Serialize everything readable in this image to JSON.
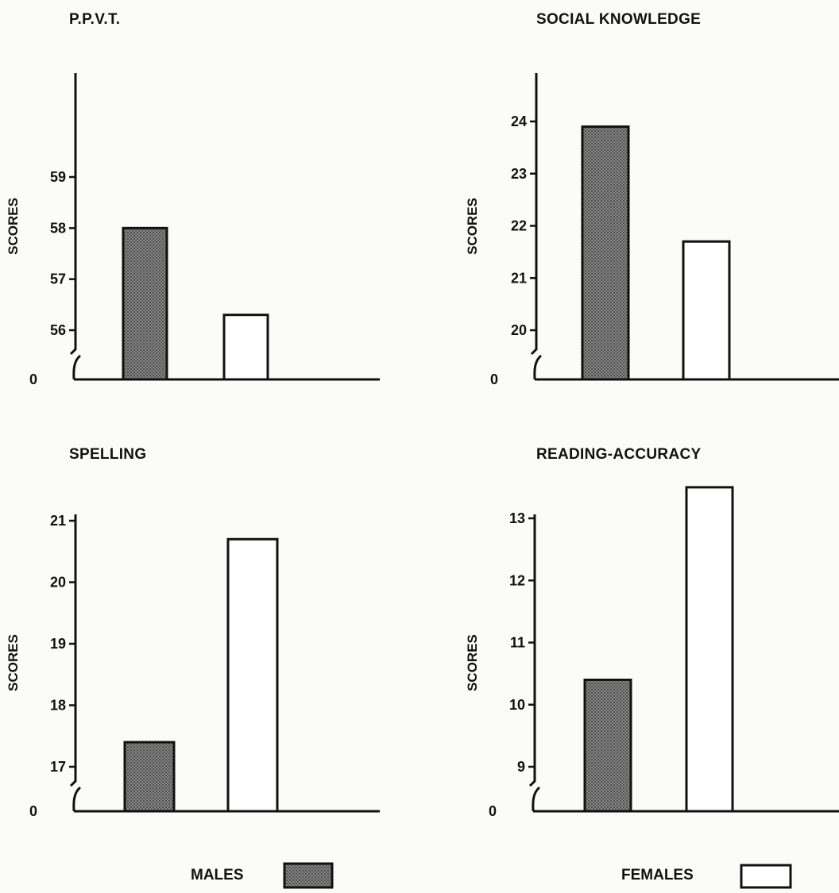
{
  "legend": {
    "males": "MALES",
    "females": "FEMALES"
  },
  "colors": {
    "ink": "#111111",
    "background": "#fbfbf9",
    "female_fill": "#ffffff",
    "male_fill": "hatched-gray"
  },
  "chart_data": [
    {
      "type": "bar",
      "title": "P.P.V.T.",
      "ylabel": "SCORES",
      "categories": [
        "MALES",
        "FEMALES"
      ],
      "values": [
        58.0,
        56.3
      ],
      "yticks": [
        56,
        57,
        58,
        59
      ],
      "ytick_labels": [
        "56",
        "57",
        "58",
        "59"
      ],
      "ylim": [
        55.3,
        60.6
      ],
      "broken_axis_zero_label": "0"
    },
    {
      "type": "bar",
      "title": "SOCIAL KNOWLEDGE",
      "ylabel": "SCORES",
      "categories": [
        "MALES",
        "FEMALES"
      ],
      "values": [
        23.9,
        21.7
      ],
      "yticks": [
        20,
        21,
        22,
        23,
        24
      ],
      "ytick_labels": [
        "20",
        "21",
        "22",
        "23",
        "24"
      ],
      "ylim": [
        19.1,
        24.9
      ],
      "broken_axis_zero_label": "0"
    },
    {
      "type": "bar",
      "title": "SPELLING",
      "ylabel": "SCORES",
      "categories": [
        "MALES",
        "FEMALES"
      ],
      "values": [
        17.4,
        20.7
      ],
      "yticks": [
        17,
        18,
        19,
        20,
        21
      ],
      "ytick_labels": [
        "17",
        "18",
        "19",
        "20",
        "21"
      ],
      "ylim": [
        16.3,
        21.9
      ],
      "broken_axis_zero_label": "0"
    },
    {
      "type": "bar",
      "title": "READING-ACCURACY",
      "ylabel": "SCORES",
      "categories": [
        "MALES",
        "FEMALES"
      ],
      "values": [
        10.4,
        13.5
      ],
      "yticks": [
        9,
        10,
        11,
        12,
        13
      ],
      "ytick_labels": [
        "9",
        "10",
        "11",
        "12",
        "13"
      ],
      "ylim": [
        8.2,
        13.8
      ],
      "broken_axis_zero_label": "0"
    }
  ]
}
